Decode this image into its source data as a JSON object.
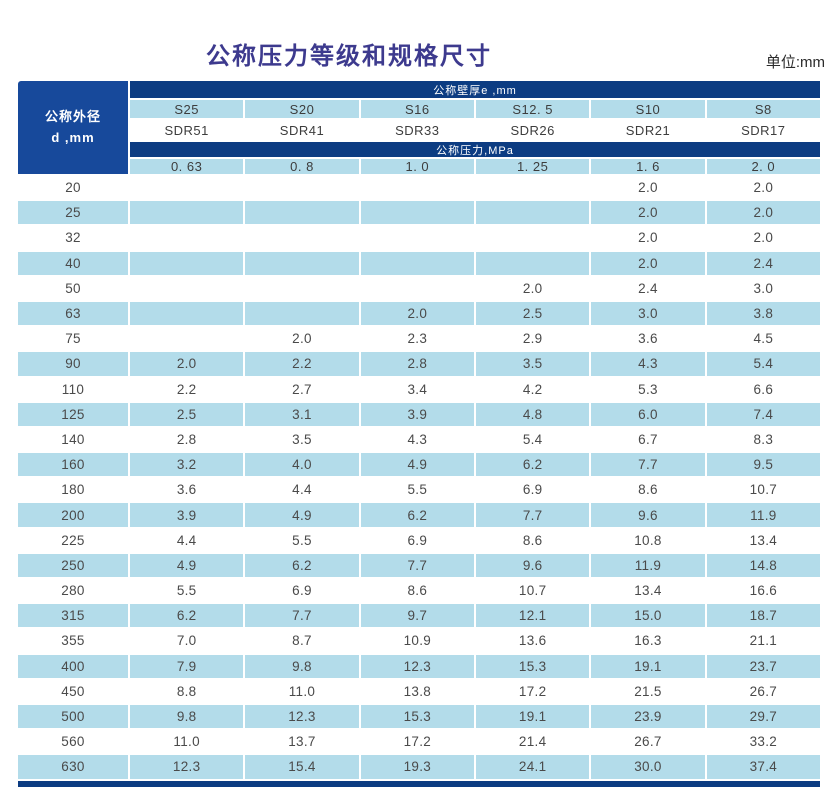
{
  "page": {
    "title": "公称压力等级和规格尺寸",
    "unit_label": "单位:mm"
  },
  "table": {
    "corner": {
      "line1": "公称外径",
      "line2": "d ,mm"
    },
    "bands": {
      "wall_thickness": "公称壁厚e ,mm",
      "pressure": "公称压力,MPa"
    },
    "series_labels": [
      "S25",
      "S20",
      "S16",
      "S12. 5",
      "S10",
      "S8"
    ],
    "sdr_labels": [
      "SDR51",
      "SDR41",
      "SDR33",
      "SDR26",
      "SDR21",
      "SDR17"
    ],
    "pressure_ratings": [
      "0. 63",
      "0. 8",
      "1. 0",
      "1. 25",
      "1. 6",
      "2. 0"
    ],
    "rows": [
      {
        "d": "20",
        "values": [
          "",
          "",
          "",
          "",
          "2.0",
          "2.0"
        ]
      },
      {
        "d": "25",
        "values": [
          "",
          "",
          "",
          "",
          "2.0",
          "2.0"
        ]
      },
      {
        "d": "32",
        "values": [
          "",
          "",
          "",
          "",
          "2.0",
          "2.0"
        ]
      },
      {
        "d": "40",
        "values": [
          "",
          "",
          "",
          "",
          "2.0",
          "2.4"
        ]
      },
      {
        "d": "50",
        "values": [
          "",
          "",
          "",
          "2.0",
          "2.4",
          "3.0"
        ]
      },
      {
        "d": "63",
        "values": [
          "",
          "",
          "2.0",
          "2.5",
          "3.0",
          "3.8"
        ]
      },
      {
        "d": "75",
        "values": [
          "",
          "2.0",
          "2.3",
          "2.9",
          "3.6",
          "4.5"
        ]
      },
      {
        "d": "90",
        "values": [
          "2.0",
          "2.2",
          "2.8",
          "3.5",
          "4.3",
          "5.4"
        ]
      },
      {
        "d": "110",
        "values": [
          "2.2",
          "2.7",
          "3.4",
          "4.2",
          "5.3",
          "6.6"
        ]
      },
      {
        "d": "125",
        "values": [
          "2.5",
          "3.1",
          "3.9",
          "4.8",
          "6.0",
          "7.4"
        ]
      },
      {
        "d": "140",
        "values": [
          "2.8",
          "3.5",
          "4.3",
          "5.4",
          "6.7",
          "8.3"
        ]
      },
      {
        "d": "160",
        "values": [
          "3.2",
          "4.0",
          "4.9",
          "6.2",
          "7.7",
          "9.5"
        ]
      },
      {
        "d": "180",
        "values": [
          "3.6",
          "4.4",
          "5.5",
          "6.9",
          "8.6",
          "10.7"
        ]
      },
      {
        "d": "200",
        "values": [
          "3.9",
          "4.9",
          "6.2",
          "7.7",
          "9.6",
          "11.9"
        ]
      },
      {
        "d": "225",
        "values": [
          "4.4",
          "5.5",
          "6.9",
          "8.6",
          "10.8",
          "13.4"
        ]
      },
      {
        "d": "250",
        "values": [
          "4.9",
          "6.2",
          "7.7",
          "9.6",
          "11.9",
          "14.8"
        ]
      },
      {
        "d": "280",
        "values": [
          "5.5",
          "6.9",
          "8.6",
          "10.7",
          "13.4",
          "16.6"
        ]
      },
      {
        "d": "315",
        "values": [
          "6.2",
          "7.7",
          "9.7",
          "12.1",
          "15.0",
          "18.7"
        ]
      },
      {
        "d": "355",
        "values": [
          "7.0",
          "8.7",
          "10.9",
          "13.6",
          "16.3",
          "21.1"
        ]
      },
      {
        "d": "400",
        "values": [
          "7.9",
          "9.8",
          "12.3",
          "15.3",
          "19.1",
          "23.7"
        ]
      },
      {
        "d": "450",
        "values": [
          "8.8",
          "11.0",
          "13.8",
          "17.2",
          "21.5",
          "26.7"
        ]
      },
      {
        "d": "500",
        "values": [
          "9.8",
          "12.3",
          "15.3",
          "19.1",
          "23.9",
          "29.7"
        ]
      },
      {
        "d": "560",
        "values": [
          "11.0",
          "13.7",
          "17.2",
          "21.4",
          "26.7",
          "33.2"
        ]
      },
      {
        "d": "630",
        "values": [
          "12.3",
          "15.4",
          "19.3",
          "24.1",
          "30.0",
          "37.4"
        ]
      }
    ]
  },
  "colors": {
    "band_navy": "#0c3c82",
    "corner_navy": "#17499b",
    "row_light_blue": "#b3dcea",
    "title_purple": "#3d3a8e",
    "data_text": "#4a4a4a"
  }
}
